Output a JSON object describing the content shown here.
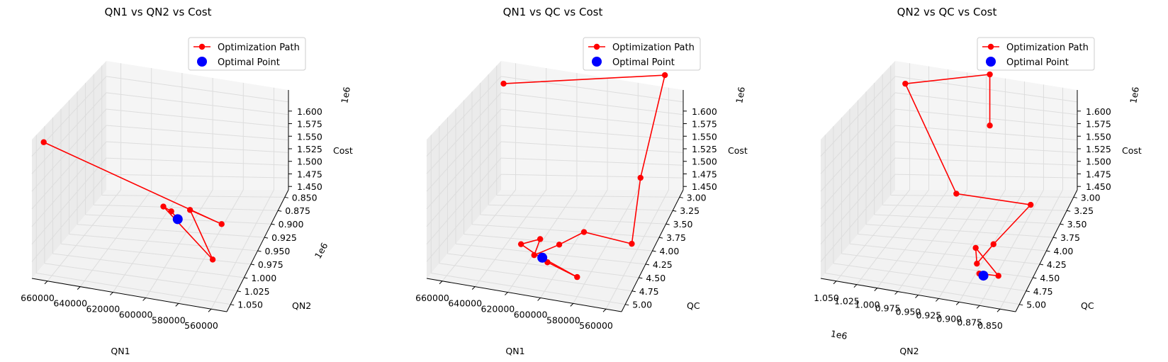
{
  "chart_data": [
    {
      "type": "line3d",
      "title": "QN1 vs QN2 vs Cost",
      "xlabel": "QN1",
      "ylabel": "QN2",
      "zlabel": "Cost",
      "x_ticks": [
        "660000",
        "640000",
        "620000",
        "600000",
        "580000",
        "560000"
      ],
      "y_ticks": [
        "0.850",
        "0.875",
        "0.900",
        "0.925",
        "0.950",
        "0.975",
        "1.000",
        "1.025",
        "1.050"
      ],
      "z_ticks": [
        "1.450",
        "1.475",
        "1.500",
        "1.525",
        "1.550",
        "1.575",
        "1.600"
      ],
      "y_offset": "1e6",
      "z_offset": "1e6",
      "legend": [
        "Optimization Path",
        "Optimal Point"
      ],
      "path": [
        {
          "x": 665000,
          "y": 1.05,
          "z": 1620000
        },
        {
          "x": 575000,
          "y": 0.94,
          "z": 1453000
        },
        {
          "x": 595000,
          "y": 0.94,
          "z": 1470000
        },
        {
          "x": 570000,
          "y": 1.0,
          "z": 1447000
        },
        {
          "x": 610000,
          "y": 0.95,
          "z": 1479000
        },
        {
          "x": 605000,
          "y": 0.95,
          "z": 1473000
        },
        {
          "x": 600000,
          "y": 0.955,
          "z": 1466000
        }
      ],
      "optimal": {
        "x": 600000,
        "y": 0.955,
        "z": 1466000
      }
    },
    {
      "type": "line3d",
      "title": "QN1 vs QC vs Cost",
      "xlabel": "QN1",
      "ylabel": "QC",
      "zlabel": "Cost",
      "x_ticks": [
        "660000",
        "640000",
        "620000",
        "600000",
        "580000",
        "560000"
      ],
      "y_ticks": [
        "3.00",
        "3.25",
        "3.50",
        "3.75",
        "4.00",
        "4.25",
        "4.50",
        "4.75",
        "5.00"
      ],
      "z_ticks": [
        "1.450",
        "1.475",
        "1.500",
        "1.525",
        "1.550",
        "1.575",
        "1.600"
      ],
      "z_offset": "1e6",
      "legend": [
        "Optimization Path",
        "Optimal Point"
      ],
      "path": [
        {
          "x": 665000,
          "y": 3.0,
          "z": 1590000
        },
        {
          "x": 560000,
          "y": 3.0,
          "z": 1605000
        },
        {
          "x": 565000,
          "y": 3.6,
          "z": 1500000
        },
        {
          "x": 560000,
          "y": 4.2,
          "z": 1450000
        },
        {
          "x": 590000,
          "y": 4.2,
          "z": 1460000
        },
        {
          "x": 600000,
          "y": 4.5,
          "z": 1460000
        },
        {
          "x": 610000,
          "y": 4.8,
          "z": 1462000
        },
        {
          "x": 610000,
          "y": 4.6,
          "z": 1472000
        },
        {
          "x": 620000,
          "y": 4.7,
          "z": 1468000
        },
        {
          "x": 600000,
          "y": 4.9,
          "z": 1462000
        },
        {
          "x": 580000,
          "y": 5.0,
          "z": 1455000
        },
        {
          "x": 605000,
          "y": 4.8,
          "z": 1460000
        }
      ],
      "optimal": {
        "x": 605000,
        "y": 4.8,
        "z": 1460000
      }
    },
    {
      "type": "line3d",
      "title": "QN2 vs QC vs Cost",
      "xlabel": "QN2",
      "ylabel": "QC",
      "zlabel": "Cost",
      "x_ticks": [
        "1.050",
        "1.025",
        "1.000",
        "0.975",
        "0.950",
        "0.925",
        "0.900",
        "0.875",
        "0.850"
      ],
      "y_ticks": [
        "3.00",
        "3.25",
        "3.50",
        "3.75",
        "4.00",
        "4.25",
        "4.50",
        "4.75",
        "5.00"
      ],
      "z_ticks": [
        "1.450",
        "1.475",
        "1.500",
        "1.525",
        "1.550",
        "1.575",
        "1.600"
      ],
      "x_offset": "1e6",
      "z_offset": "1e6",
      "legend": [
        "Optimization Path",
        "Optimal Point"
      ],
      "path": [
        {
          "x": 0.94,
          "y": 3.0,
          "z": 1530000
        },
        {
          "x": 0.94,
          "y": 3.0,
          "z": 1605000
        },
        {
          "x": 1.05,
          "y": 3.0,
          "z": 1590000
        },
        {
          "x": 0.96,
          "y": 3.6,
          "z": 1470000
        },
        {
          "x": 0.865,
          "y": 3.6,
          "z": 1460000
        },
        {
          "x": 0.88,
          "y": 4.5,
          "z": 1468000
        },
        {
          "x": 0.89,
          "y": 4.8,
          "z": 1460000
        },
        {
          "x": 0.895,
          "y": 4.7,
          "z": 1475000
        },
        {
          "x": 0.86,
          "y": 4.9,
          "z": 1455000
        },
        {
          "x": 0.88,
          "y": 5.0,
          "z": 1462000
        },
        {
          "x": 0.875,
          "y": 5.0,
          "z": 1460000
        }
      ],
      "optimal": {
        "x": 0.875,
        "y": 5.0,
        "z": 1460000
      }
    }
  ],
  "colors": {
    "path": "#ff0000",
    "optimal": "#0000ff",
    "pane": "#f2f2f2",
    "grid": "#dddddd"
  }
}
